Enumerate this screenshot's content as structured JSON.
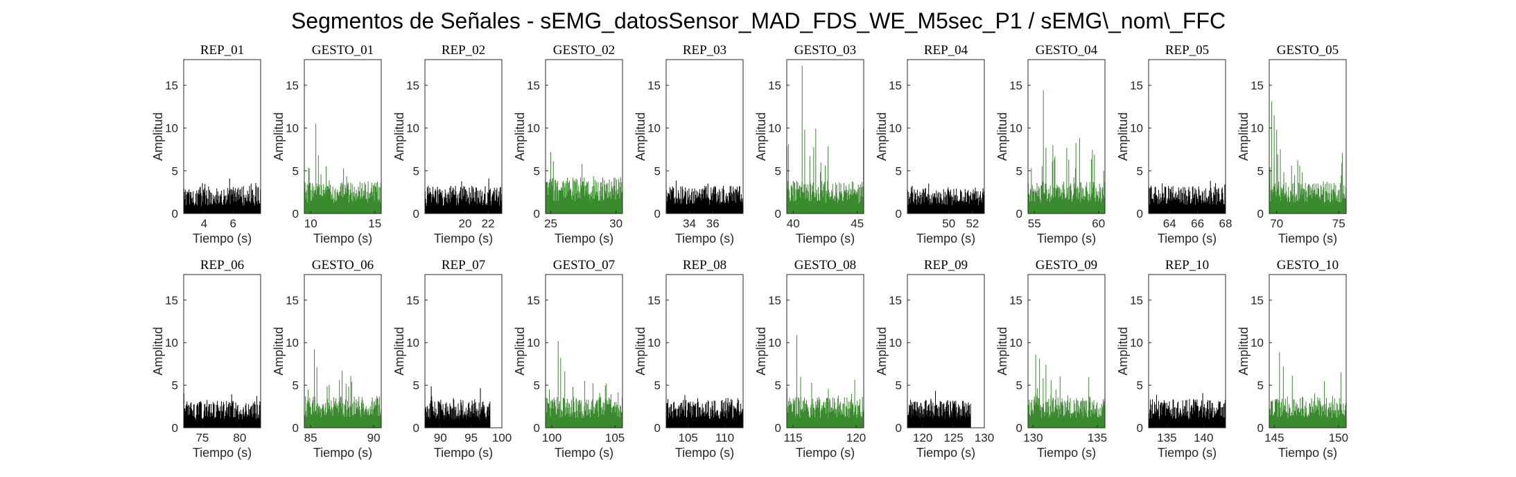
{
  "title": "Segmentos de Señales - sEMG_datosSensor_MAD_FDS_WE_M5sec_P1 / sEMG\\_nom\\_FFC",
  "colors": {
    "rep": "#000000",
    "gesto": "#3a8a2e",
    "axis": "#262626"
  },
  "chart_data": {
    "type": "bar",
    "shared": {
      "xlabel": "Tiempo (s)",
      "ylabel": "Amplitud",
      "ylim": [
        0,
        18
      ],
      "yticks": [
        0,
        5,
        10,
        15
      ],
      "grid": false
    },
    "panels": [
      {
        "title": "REP_01",
        "kind": "rep",
        "xlim": [
          2.6,
          7.9
        ],
        "xticks": [
          4,
          6
        ],
        "t_start": 2.6,
        "t_end": 7.9,
        "base": 1.6,
        "amp": 1.7,
        "peak": 5.2,
        "spikes": []
      },
      {
        "title": "GESTO_01",
        "kind": "gesto",
        "xlim": [
          9.5,
          15.5
        ],
        "xticks": [
          10,
          15
        ],
        "t_start": 9.5,
        "t_end": 15.5,
        "base": 2.0,
        "amp": 1.8,
        "peak": 10.5,
        "spikes": [
          [
            10.4,
            10.5
          ],
          [
            10.6,
            6.8
          ],
          [
            11.2,
            5.5
          ]
        ]
      },
      {
        "title": "REP_02",
        "kind": "rep",
        "xlim": [
          16.5,
          23.2
        ],
        "xticks": [
          20,
          22
        ],
        "t_start": 16.5,
        "t_end": 23.2,
        "base": 1.6,
        "amp": 1.7,
        "peak": 5.3,
        "spikes": []
      },
      {
        "title": "GESTO_02",
        "kind": "gesto",
        "xlim": [
          24.6,
          30.5
        ],
        "xticks": [
          25,
          30
        ],
        "t_start": 24.6,
        "t_end": 30.5,
        "base": 2.3,
        "amp": 2.0,
        "peak": 7.2,
        "spikes": [
          [
            25.0,
            7.2
          ],
          [
            25.2,
            6.1
          ],
          [
            27.4,
            5.8
          ]
        ]
      },
      {
        "title": "REP_03",
        "kind": "rep",
        "xlim": [
          32.0,
          38.6
        ],
        "xticks": [
          34,
          36
        ],
        "t_start": 32.0,
        "t_end": 38.6,
        "base": 1.7,
        "amp": 1.6,
        "peak": 4.8,
        "spikes": []
      },
      {
        "title": "GESTO_03",
        "kind": "gesto",
        "xlim": [
          39.5,
          45.5
        ],
        "xticks": [
          40,
          45
        ],
        "t_start": 39.5,
        "t_end": 45.5,
        "base": 2.0,
        "amp": 1.9,
        "peak": 17.3,
        "spikes": [
          [
            40.7,
            17.3
          ],
          [
            40.9,
            9.8
          ],
          [
            41.3,
            6.7
          ],
          [
            42.5,
            5.6
          ]
        ]
      },
      {
        "title": "REP_04",
        "kind": "rep",
        "xlim": [
          46.5,
          53.0
        ],
        "xticks": [
          50,
          52
        ],
        "t_start": 46.5,
        "t_end": 53.0,
        "base": 1.6,
        "amp": 1.5,
        "peak": 4.5,
        "spikes": []
      },
      {
        "title": "GESTO_04",
        "kind": "gesto",
        "xlim": [
          54.5,
          60.5
        ],
        "xticks": [
          55,
          60
        ],
        "t_start": 54.5,
        "t_end": 60.5,
        "base": 2.0,
        "amp": 1.8,
        "peak": 14.4,
        "spikes": [
          [
            55.7,
            14.4
          ],
          [
            55.9,
            7.7
          ],
          [
            56.4,
            6.1
          ],
          [
            58.2,
            5.3
          ]
        ]
      },
      {
        "title": "REP_05",
        "kind": "rep",
        "xlim": [
          62.5,
          68.0
        ],
        "xticks": [
          64,
          66,
          68
        ],
        "t_start": 62.5,
        "t_end": 68.0,
        "base": 1.7,
        "amp": 1.6,
        "peak": 5.7,
        "spikes": []
      },
      {
        "title": "GESTO_05",
        "kind": "gesto",
        "xlim": [
          69.4,
          75.6
        ],
        "xticks": [
          70,
          75
        ],
        "t_start": 69.4,
        "t_end": 75.6,
        "base": 2.0,
        "amp": 1.8,
        "peak": 13.1,
        "spikes": [
          [
            69.6,
            13.1
          ],
          [
            69.8,
            11.5
          ],
          [
            70.0,
            9.8
          ],
          [
            70.3,
            7.5
          ],
          [
            71.2,
            5.6
          ]
        ]
      },
      {
        "title": "REP_06",
        "kind": "rep",
        "xlim": [
          72.5,
          82.8
        ],
        "xticks": [
          75,
          80
        ],
        "t_start": 72.5,
        "t_end": 82.8,
        "base": 1.6,
        "amp": 1.6,
        "peak": 5.6,
        "spikes": []
      },
      {
        "title": "GESTO_06",
        "kind": "gesto",
        "xlim": [
          84.5,
          90.6
        ],
        "xticks": [
          85,
          90
        ],
        "t_start": 84.5,
        "t_end": 90.6,
        "base": 2.0,
        "amp": 1.8,
        "peak": 9.2,
        "spikes": [
          [
            85.3,
            9.2
          ],
          [
            85.5,
            7.1
          ],
          [
            87.5,
            6.7
          ]
        ]
      },
      {
        "title": "REP_07",
        "kind": "rep",
        "xlim": [
          87.5,
          100.0
        ],
        "xticks": [
          90,
          95,
          100
        ],
        "t_start": 87.5,
        "t_end": 98.1,
        "base": 1.7,
        "amp": 1.7,
        "peak": 6.5,
        "spikes": []
      },
      {
        "title": "GESTO_07",
        "kind": "gesto",
        "xlim": [
          99.5,
          105.6
        ],
        "xticks": [
          100,
          105
        ],
        "t_start": 99.5,
        "t_end": 105.6,
        "base": 1.9,
        "amp": 1.8,
        "peak": 10.2,
        "spikes": [
          [
            100.5,
            10.2
          ],
          [
            100.7,
            8.2
          ],
          [
            102.6,
            5.5
          ]
        ]
      },
      {
        "title": "REP_08",
        "kind": "rep",
        "xlim": [
          102.0,
          112.5
        ],
        "xticks": [
          105,
          110
        ],
        "t_start": 102.0,
        "t_end": 112.5,
        "base": 1.8,
        "amp": 1.8,
        "peak": 5.5,
        "spikes": []
      },
      {
        "title": "GESTO_08",
        "kind": "gesto",
        "xlim": [
          114.5,
          120.6
        ],
        "xticks": [
          115,
          120
        ],
        "t_start": 114.5,
        "t_end": 120.6,
        "base": 1.9,
        "amp": 1.8,
        "peak": 10.9,
        "spikes": [
          [
            115.3,
            10.9
          ],
          [
            115.6,
            6.0
          ],
          [
            117.8,
            4.6
          ]
        ]
      },
      {
        "title": "REP_09",
        "kind": "rep",
        "xlim": [
          117.5,
          130.0
        ],
        "xticks": [
          120,
          125,
          130
        ],
        "t_start": 117.5,
        "t_end": 127.8,
        "base": 1.7,
        "amp": 1.6,
        "peak": 5.6,
        "spikes": []
      },
      {
        "title": "GESTO_09",
        "kind": "gesto",
        "xlim": [
          129.6,
          135.6
        ],
        "xticks": [
          130,
          135
        ],
        "t_start": 129.6,
        "t_end": 135.6,
        "base": 1.9,
        "amp": 1.8,
        "peak": 8.6,
        "spikes": [
          [
            130.2,
            8.6
          ],
          [
            130.5,
            8.1
          ],
          [
            131.0,
            7.4
          ],
          [
            131.4,
            5.6
          ]
        ]
      },
      {
        "title": "REP_10",
        "kind": "rep",
        "xlim": [
          132.5,
          143.0
        ],
        "xticks": [
          135,
          140
        ],
        "t_start": 132.5,
        "t_end": 143.0,
        "base": 1.7,
        "amp": 1.7,
        "peak": 5.5,
        "spikes": []
      },
      {
        "title": "GESTO_10",
        "kind": "gesto",
        "xlim": [
          144.6,
          150.6
        ],
        "xticks": [
          145,
          150
        ],
        "t_start": 144.6,
        "t_end": 150.6,
        "base": 1.9,
        "amp": 1.8,
        "peak": 8.9,
        "spikes": [
          [
            145.4,
            8.9
          ],
          [
            145.7,
            7.2
          ],
          [
            146.4,
            6.1
          ],
          [
            150.2,
            6.5
          ]
        ]
      }
    ]
  }
}
